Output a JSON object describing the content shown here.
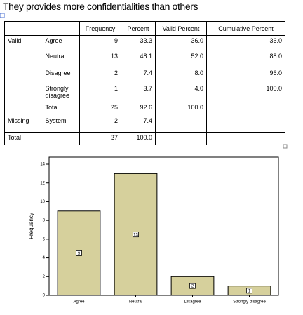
{
  "title": "They provides more confidentialities than others",
  "table": {
    "header": [
      "Frequency",
      "Percent",
      "Valid Percent",
      "Cumulative Percent"
    ],
    "rows": [
      [
        "Valid",
        "Agree",
        "9",
        "33.3",
        "36.0",
        "36.0"
      ],
      [
        null,
        "Neutral",
        "13",
        "48.1",
        "52.0",
        "88.0"
      ],
      [
        null,
        "Disagree",
        "2",
        "7.4",
        "8.0",
        "96.0"
      ],
      [
        null,
        "Strongly disagree",
        "1",
        "3.7",
        "4.0",
        "100.0"
      ],
      [
        null,
        "Total",
        "25",
        "92.6",
        "100.0",
        null
      ],
      [
        "Missing",
        "System",
        "2",
        "7.4",
        null,
        null
      ],
      [
        "Total",
        null,
        "27",
        "100.0",
        null,
        null
      ]
    ]
  },
  "chart_data": {
    "type": "bar",
    "y_label": "Frequency",
    "categories": [
      "Agree",
      "Neutral",
      "Disagree",
      "Strongly disagree"
    ],
    "values": [
      9,
      13,
      2,
      1
    ],
    "color": "#d6d09c",
    "ylim": [
      0,
      14
    ],
    "yticks": [
      0,
      2,
      4,
      6,
      8,
      10,
      12,
      14
    ]
  }
}
